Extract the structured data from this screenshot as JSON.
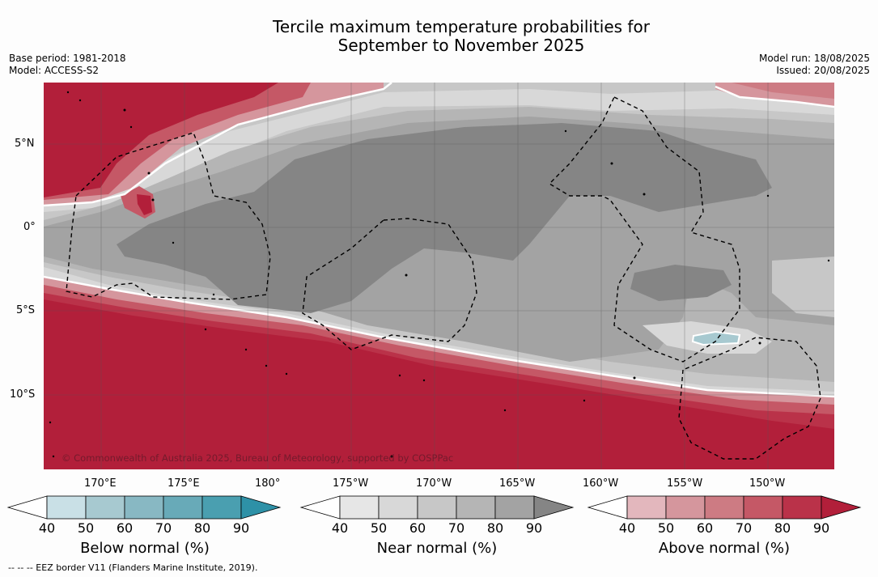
{
  "header": {
    "title_line1": "Tercile maximum temperature probabilities for",
    "title_line2": "September to November 2025",
    "base_period": "Base period: 1981-2018",
    "model": "Model: ACCESS-S2",
    "model_run": "Model run: 18/08/2025",
    "issued": "Issued: 20/08/2025"
  },
  "map": {
    "copyright": "© Commonwealth of Australia 2025, Bureau of Meteorology, supported by COSPPac",
    "lat_labels": [
      "5°N",
      "0°",
      "5°S",
      "10°S"
    ],
    "lon_labels_upper": [
      "170°E",
      "175°E",
      "180°"
    ],
    "lon_labels_lower": [
      "175°W",
      "170°W",
      "165°W",
      "160°W",
      "155°W",
      "150°W"
    ],
    "colors": {
      "above_90": "#b21f3a",
      "above_80": "#ba3249",
      "above_70": "#c55866",
      "above_60": "#cd7b83",
      "above_50": "#d5969d",
      "near_90": "#858585",
      "near_80": "#a3a3a3",
      "near_70": "#b5b5b5",
      "near_60": "#c7c7c7",
      "near_50": "#d8d8d8",
      "below_50": "#a7c9d0"
    }
  },
  "colorbars": [
    {
      "label": "Below normal (%)",
      "ticks": [
        "40",
        "50",
        "60",
        "70",
        "80",
        "90"
      ],
      "colors": [
        "#c9e0e6",
        "#a7c9d0",
        "#88b8c3",
        "#68aab8",
        "#4a9fb0",
        "#2e91a7"
      ]
    },
    {
      "label": "Near normal (%)",
      "ticks": [
        "40",
        "50",
        "60",
        "70",
        "80",
        "90"
      ],
      "colors": [
        "#e6e6e6",
        "#d8d8d8",
        "#c7c7c7",
        "#b5b5b5",
        "#a3a3a3",
        "#858585"
      ]
    },
    {
      "label": "Above normal (%)",
      "ticks": [
        "40",
        "50",
        "60",
        "70",
        "80",
        "90"
      ],
      "colors": [
        "#e3b7bd",
        "#d5969d",
        "#cd7b83",
        "#c55866",
        "#ba3249",
        "#b21f3a"
      ]
    }
  ],
  "footnote": "--  --  -- EEZ border V11 (Flanders Marine Institute, 2019)."
}
